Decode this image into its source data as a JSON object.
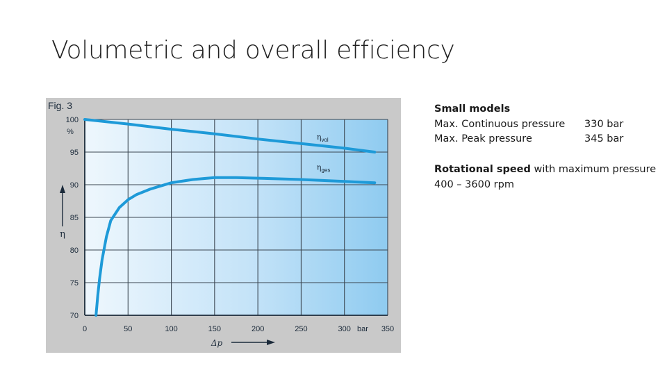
{
  "slide": {
    "title": "Volumetric and overall efficiency"
  },
  "specs": {
    "heading": "Small models",
    "rows": [
      {
        "label": "Max. Continuous pressure",
        "value": "330 bar"
      },
      {
        "label": "Max. Peak pressure",
        "value": "345 bar"
      }
    ],
    "rotational_label": "Rotational speed",
    "rotational_rest": " with maximum pressure",
    "rotational_value": "400 – 3600 rpm"
  },
  "chart_data": {
    "type": "line",
    "title": "Fig. 3",
    "xlabel": "Δp",
    "ylabel": "η",
    "x_unit": "bar",
    "y_unit": "%",
    "xlim": [
      0,
      350
    ],
    "ylim": [
      70,
      100
    ],
    "x_ticks": [
      "0",
      "50",
      "100",
      "150",
      "200",
      "250",
      "300",
      "350"
    ],
    "y_ticks": [
      "100",
      "95",
      "90",
      "85",
      "80",
      "75",
      "70"
    ],
    "grid": true,
    "series": [
      {
        "name": "ηvol",
        "label_main": "η",
        "label_sub": "vol",
        "x": [
          0,
          50,
          100,
          150,
          200,
          250,
          300,
          335
        ],
        "y": [
          100,
          99.3,
          98.5,
          97.8,
          97,
          96.3,
          95.6,
          95
        ]
      },
      {
        "name": "ηges",
        "label_main": "η",
        "label_sub": "ges",
        "x": [
          13,
          15,
          17,
          20,
          25,
          30,
          40,
          50,
          60,
          75,
          90,
          100,
          125,
          150,
          175,
          200,
          250,
          300,
          335
        ],
        "y": [
          70,
          73,
          75.5,
          78.5,
          82,
          84.5,
          86.5,
          87.7,
          88.5,
          89.3,
          89.9,
          90.3,
          90.8,
          91.1,
          91.1,
          91,
          90.8,
          90.5,
          90.3
        ]
      }
    ],
    "colors": {
      "line": "#1e9ad8",
      "background_light": "#eef7fd",
      "background_dark": "#8fcbf0",
      "frame": "#c9c9c9"
    }
  }
}
